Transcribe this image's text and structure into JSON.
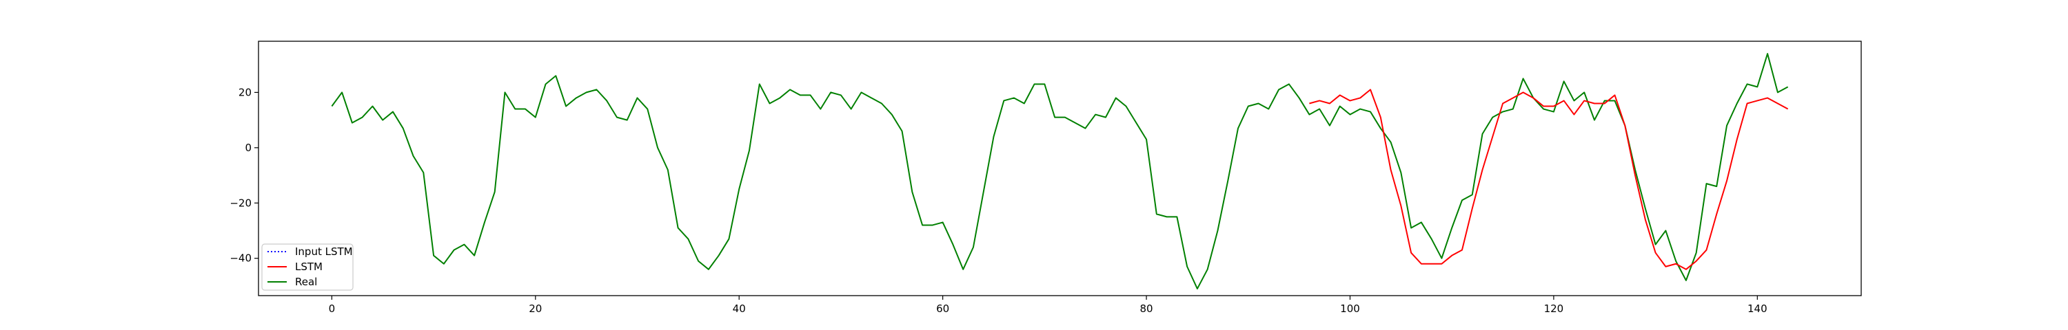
{
  "chart_data": {
    "type": "line",
    "title": "",
    "xlabel": "",
    "ylabel": "",
    "xlim": [
      -7.2,
      150.2
    ],
    "ylim": [
      -53.5,
      38.5
    ],
    "x_ticks": [
      0,
      20,
      40,
      60,
      80,
      100,
      120,
      140
    ],
    "y_ticks": [
      -40,
      -20,
      0,
      20
    ],
    "grid": false,
    "legend_position": "lower-left",
    "series": [
      {
        "name": "Input LSTM",
        "color": "#0000ff",
        "line_style": "dotted",
        "x": [],
        "y": []
      },
      {
        "name": "LSTM",
        "color": "#ff0000",
        "line_style": "solid",
        "x_start": 96,
        "y": [
          16,
          17,
          16,
          19,
          17,
          18,
          21,
          11,
          -8,
          -21,
          -38,
          -42,
          -42,
          -42,
          -39,
          -37,
          -22,
          -8,
          4,
          16,
          18,
          20,
          18,
          15,
          15,
          17,
          12,
          17,
          16,
          16,
          19,
          8,
          -10,
          -26,
          -38,
          -43,
          -42,
          -44,
          -41,
          -37,
          -24,
          -12,
          3,
          16,
          17,
          18,
          16,
          14
        ]
      },
      {
        "name": "Real",
        "color": "#008000",
        "line_style": "solid",
        "x_start": 0,
        "y": [
          15,
          20,
          9,
          11,
          15,
          10,
          13,
          7,
          -3,
          -9,
          -39,
          -42,
          -37,
          -35,
          -39,
          -27,
          -16,
          20,
          14,
          14,
          11,
          23,
          26,
          15,
          18,
          20,
          21,
          17,
          11,
          10,
          18,
          14,
          0,
          -8,
          -29,
          -33,
          -41,
          -44,
          -39,
          -33,
          -15,
          -1,
          23,
          16,
          18,
          21,
          19,
          19,
          14,
          20,
          19,
          14,
          20,
          18,
          16,
          12,
          6,
          -16,
          -28,
          -28,
          -27,
          -35,
          -44,
          -36,
          -16,
          4,
          17,
          18,
          16,
          23,
          23,
          11,
          11,
          9,
          7,
          12,
          11,
          18,
          15,
          9,
          3,
          -24,
          -25,
          -25,
          -43,
          -51,
          -44,
          -30,
          -12,
          7,
          15,
          16,
          14,
          21,
          23,
          18,
          12,
          14,
          8,
          15,
          12,
          14,
          13,
          7,
          2,
          -9,
          -29,
          -27,
          -33,
          -40,
          -29,
          -19,
          -17,
          5,
          11,
          13,
          14,
          25,
          18,
          14,
          13,
          24,
          17,
          20,
          10,
          17,
          17,
          8,
          -8,
          -22,
          -35,
          -30,
          -41,
          -48,
          -38,
          -13,
          -14,
          8,
          16,
          23,
          22,
          34,
          20,
          22
        ]
      }
    ]
  }
}
